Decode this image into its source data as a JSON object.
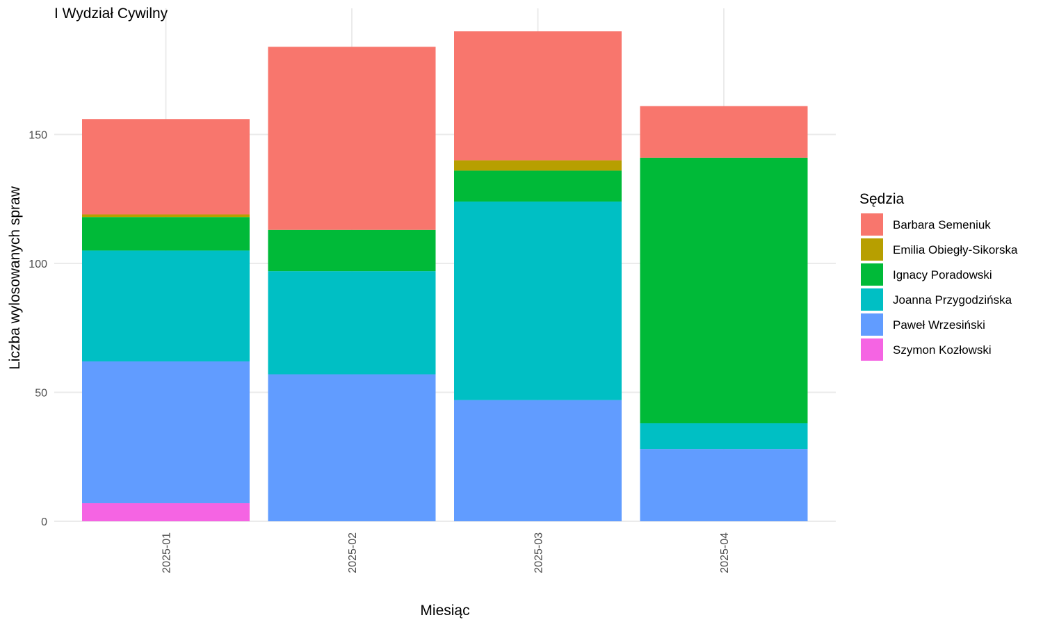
{
  "chart_data": {
    "type": "bar",
    "stacked": true,
    "title": "I Wydział Cywilny",
    "xlabel": "Miesiąc",
    "ylabel": "Liczba wylosowanych spraw",
    "categories": [
      "2025-01",
      "2025-02",
      "2025-03",
      "2025-04"
    ],
    "ylim": [
      0,
      199
    ],
    "yticks": [
      0,
      50,
      100,
      150
    ],
    "grid": true,
    "legend": {
      "title": "Sędzia",
      "position": "right"
    },
    "stack_order_bottom_to_top": [
      "Szymon Kozłowski",
      "Paweł Wrzesiński",
      "Joanna Przygodzińska",
      "Ignacy Poradowski",
      "Emilia Obiegły-Sikorska",
      "Barbara Semeniuk"
    ],
    "series": [
      {
        "name": "Barbara Semeniuk",
        "color": "#F8766D",
        "values": [
          37,
          71,
          50,
          20
        ]
      },
      {
        "name": "Emilia Obiegły-Sikorska",
        "color": "#B79F00",
        "values": [
          1,
          0,
          4,
          0
        ]
      },
      {
        "name": "Ignacy Poradowski",
        "color": "#00BA38",
        "values": [
          13,
          16,
          12,
          103
        ]
      },
      {
        "name": "Joanna Przygodzińska",
        "color": "#00BFC4",
        "values": [
          43,
          40,
          77,
          10
        ]
      },
      {
        "name": "Paweł Wrzesiński",
        "color": "#619CFF",
        "values": [
          55,
          57,
          47,
          28
        ]
      },
      {
        "name": "Szymon Kozłowski",
        "color": "#F564E3",
        "values": [
          7,
          0,
          0,
          0
        ]
      }
    ]
  }
}
